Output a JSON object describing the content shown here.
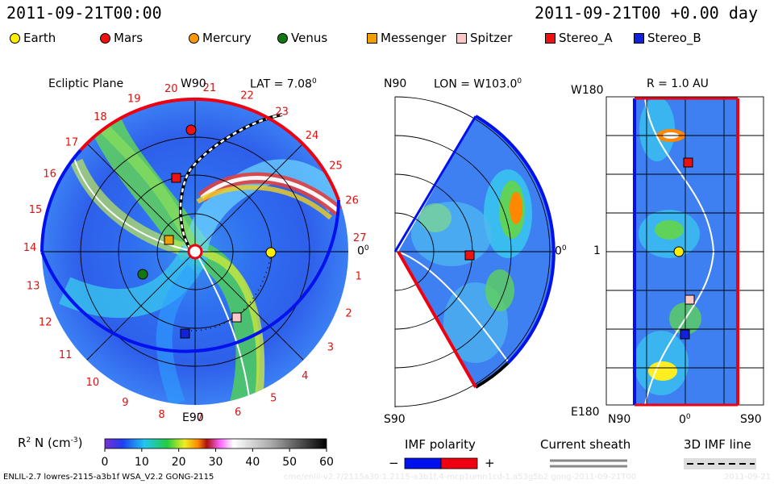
{
  "header": {
    "datetime_left": "2011-09-21T00:00",
    "datetime_right": "2011-09-21T00 +0.00 day"
  },
  "legend": [
    {
      "name": "Earth",
      "shape": "circle",
      "color": "#ffee00"
    },
    {
      "name": "Mars",
      "shape": "circle",
      "color": "#ee1111"
    },
    {
      "name": "Mercury",
      "shape": "circle",
      "color": "#ff9900"
    },
    {
      "name": "Venus",
      "shape": "circle",
      "color": "#117711"
    },
    {
      "name": "Messenger",
      "shape": "square",
      "color": "#f0a000"
    },
    {
      "name": "Spitzer",
      "shape": "square",
      "color": "#ffc8c8"
    },
    {
      "name": "Stereo_A",
      "shape": "square",
      "color": "#ee1111"
    },
    {
      "name": "Stereo_B",
      "shape": "square",
      "color": "#1122dd"
    }
  ],
  "panels": {
    "ecliptic": {
      "title": "Ecliptic Plane",
      "lat_label": "LAT = 7.08",
      "lat_sup": "0",
      "top_label": "W90",
      "bottom_label": "E90",
      "right_label": "0",
      "right_sup": "0",
      "carrington_ticks": [
        "1",
        "2",
        "3",
        "4",
        "5",
        "6",
        "7",
        "8",
        "9",
        "10",
        "11",
        "12",
        "13",
        "14",
        "15",
        "16",
        "17",
        "18",
        "19",
        "20",
        "21",
        "22",
        "23",
        "24",
        "25",
        "26",
        "27"
      ]
    },
    "meridional": {
      "lon_label": "LON = W103.0",
      "lon_sup": "0",
      "top_label": "N90",
      "bottom_label": "S90",
      "right_label": "0",
      "right_sup": "0"
    },
    "sphere": {
      "r_label": "R = 1.0 AU",
      "top_label": "W180",
      "bottom_label": "E180",
      "mid_label": "1",
      "x_labels": [
        "N90",
        "0",
        "S90"
      ],
      "x_zero_sup": "0"
    }
  },
  "colorbar": {
    "label": "R",
    "label_sup": "2",
    "label_rest": "N (cm",
    "label_unit_sup": "-3",
    "label_close": ")",
    "ticks": [
      "0",
      "10",
      "20",
      "30",
      "40",
      "50",
      "60"
    ],
    "range": [
      0,
      60
    ]
  },
  "bottom_legends": {
    "imf_polarity": "IMF polarity",
    "minus": "−",
    "plus": "+",
    "current_sheath": "Current sheath",
    "imf_line": "3D IMF line",
    "neg_color": "#0011ee",
    "pos_color": "#ee0011"
  },
  "footer": {
    "left": "ENLIL-2.7 lowres-2115-a3b1f WSA_V2.2 GONG-2115",
    "right_faded": "cme/enlil-v2.7/2115a30:1.2115-a3b1f,4-mcp1umn1cd-1.a53g5b2 gong-2011-09-21T00",
    "right_date": "2011-09-21"
  },
  "chart_data": [
    {
      "type": "heatmap",
      "title": "Ecliptic Plane",
      "subtitle": "LAT = 7.08°",
      "xlabel": "",
      "ylabel": "",
      "quantity": "R^2 N (cm^-3)",
      "range": [
        0,
        60
      ],
      "bodies": [
        {
          "name": "Earth",
          "angle_deg": 0,
          "r_au": 1.0
        },
        {
          "name": "Mars",
          "angle_deg": 92,
          "r_au": 1.5
        },
        {
          "name": "Mercury",
          "angle_deg": 160,
          "r_au": 0.33
        },
        {
          "name": "Venus",
          "angle_deg": 197,
          "r_au": 0.72
        },
        {
          "name": "Messenger",
          "angle_deg": 160,
          "r_au": 0.33
        },
        {
          "name": "Spitzer",
          "angle_deg": -50,
          "r_au": 1.05
        },
        {
          "name": "Stereo_A",
          "angle_deg": 104,
          "r_au": 0.96
        },
        {
          "name": "Stereo_B",
          "angle_deg": -97,
          "r_au": 1.08
        }
      ]
    },
    {
      "type": "heatmap",
      "subtitle": "LON = W103.0°",
      "xlabel": "",
      "ylabel": "",
      "quantity": "R^2 N (cm^-3)",
      "lat_range": [
        "N90",
        "S90"
      ],
      "bodies": [
        {
          "name": "Stereo_A",
          "lat_deg": 0,
          "r_au": 0.96
        }
      ]
    },
    {
      "type": "heatmap",
      "subtitle": "R = 1.0 AU",
      "xlabel": "",
      "ylabel": "",
      "quantity": "R^2 N (cm^-3)",
      "x_ticks": [
        "N90",
        "0",
        "S90"
      ],
      "y_ticks": [
        "W180",
        "1",
        "E180"
      ],
      "bodies": [
        {
          "name": "Stereo_A"
        },
        {
          "name": "Earth"
        },
        {
          "name": "Spitzer"
        },
        {
          "name": "Stereo_B"
        }
      ]
    }
  ]
}
